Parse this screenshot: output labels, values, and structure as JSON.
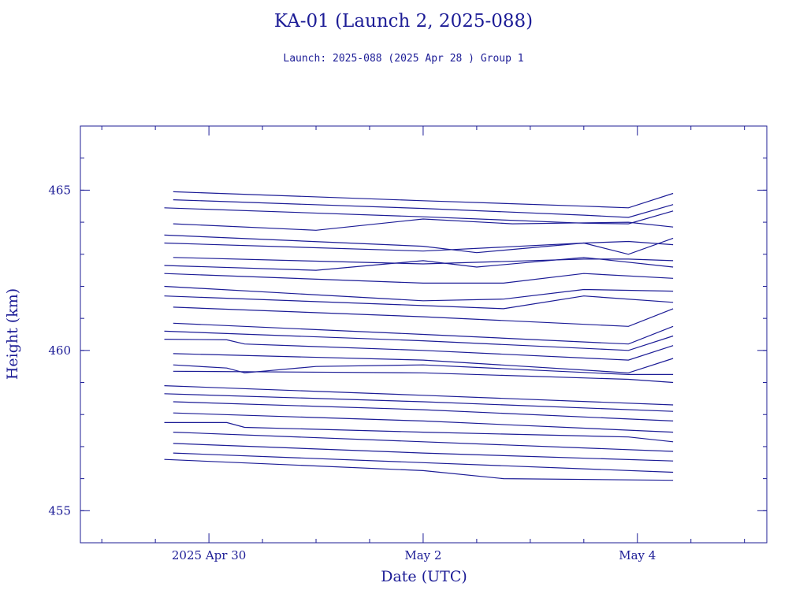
{
  "chart_data": {
    "type": "line",
    "title": "KA-01 (Launch 2, 2025-088)",
    "subtitle": "Launch: 2025-088  (2025 Apr 28 )  Group 1",
    "xlabel": "Date (UTC)",
    "ylabel": "Height (km)",
    "xlim": [
      "2025-04-28T19:12",
      "2025-05-05T05:00"
    ],
    "ylim": [
      454,
      467
    ],
    "x_ticks": [
      {
        "date": "2025-04-30T00:00",
        "label": "2025 Apr 30"
      },
      {
        "date": "2025-05-02T00:00",
        "label": "May  2"
      },
      {
        "date": "2025-05-04T00:00",
        "label": "May  4"
      }
    ],
    "y_ticks": [
      {
        "value": 455,
        "label": "455"
      },
      {
        "value": 460,
        "label": "460"
      },
      {
        "value": 465,
        "label": "465"
      }
    ],
    "minor_x_days": [
      "2025-04-29T00:00",
      "2025-04-29T12:00",
      "2025-04-30T12:00",
      "2025-05-01T00:00",
      "2025-05-01T12:00",
      "2025-05-02T12:00",
      "2025-05-03T00:00",
      "2025-05-03T12:00",
      "2025-05-04T12:00",
      "2025-05-05T00:00"
    ],
    "minor_y_step": 1,
    "line_color": "#1c1c96",
    "series": [
      {
        "x": [
          "2025-04-29T16:00",
          "2025-05-02T00:00",
          "2025-05-03T12:00",
          "2025-05-03T22:00",
          "2025-05-04T08:00"
        ],
        "y": [
          464.95,
          464.67,
          464.5,
          464.45,
          464.9
        ]
      },
      {
        "x": [
          "2025-04-29T16:00",
          "2025-05-02T00:00",
          "2025-05-03T12:00",
          "2025-05-03T22:00",
          "2025-05-04T08:00"
        ],
        "y": [
          464.7,
          464.43,
          464.22,
          464.15,
          464.55
        ]
      },
      {
        "x": [
          "2025-04-29T14:00",
          "2025-05-02T00:00",
          "2025-05-03T12:00",
          "2025-05-03T22:00",
          "2025-05-04T08:00"
        ],
        "y": [
          464.45,
          464.17,
          463.97,
          463.95,
          464.35
        ]
      },
      {
        "x": [
          "2025-04-29T16:00",
          "2025-05-01T00:00",
          "2025-05-02T00:00",
          "2025-05-02T20:00",
          "2025-05-03T22:00",
          "2025-05-04T08:00"
        ],
        "y": [
          463.95,
          463.75,
          464.1,
          463.95,
          464.0,
          463.85
        ]
      },
      {
        "x": [
          "2025-04-29T14:00",
          "2025-05-02T00:00",
          "2025-05-02T12:00",
          "2025-05-03T12:00",
          "2025-05-03T22:00",
          "2025-05-04T08:00"
        ],
        "y": [
          463.6,
          463.25,
          463.05,
          463.35,
          463.0,
          463.5
        ]
      },
      {
        "x": [
          "2025-04-29T14:00",
          "2025-05-02T00:00",
          "2025-05-03T12:00",
          "2025-05-03T22:00",
          "2025-05-04T08:00"
        ],
        "y": [
          463.35,
          463.1,
          463.35,
          463.4,
          463.3
        ]
      },
      {
        "x": [
          "2025-04-29T16:00",
          "2025-05-02T00:00",
          "2025-05-03T12:00",
          "2025-05-03T22:00",
          "2025-05-04T08:00"
        ],
        "y": [
          462.9,
          462.7,
          462.85,
          462.85,
          462.8
        ]
      },
      {
        "x": [
          "2025-04-29T14:00",
          "2025-05-01T00:00",
          "2025-05-02T00:00",
          "2025-05-02T12:00",
          "2025-05-03T12:00",
          "2025-05-04T08:00"
        ],
        "y": [
          462.65,
          462.5,
          462.8,
          462.6,
          462.9,
          462.6
        ]
      },
      {
        "x": [
          "2025-04-29T14:00",
          "2025-05-02T00:00",
          "2025-05-02T18:00",
          "2025-05-03T12:00",
          "2025-05-04T08:00"
        ],
        "y": [
          462.4,
          462.1,
          462.1,
          462.4,
          462.25
        ]
      },
      {
        "x": [
          "2025-04-29T14:00",
          "2025-05-02T00:00",
          "2025-05-02T18:00",
          "2025-05-03T12:00",
          "2025-05-04T08:00"
        ],
        "y": [
          462.0,
          461.55,
          461.6,
          461.9,
          461.85
        ]
      },
      {
        "x": [
          "2025-04-29T14:00",
          "2025-05-02T00:00",
          "2025-05-02T18:00",
          "2025-05-03T12:00",
          "2025-05-04T08:00"
        ],
        "y": [
          461.7,
          461.4,
          461.3,
          461.7,
          461.5
        ]
      },
      {
        "x": [
          "2025-04-29T16:00",
          "2025-05-02T00:00",
          "2025-05-03T22:00",
          "2025-05-04T08:00"
        ],
        "y": [
          461.35,
          461.05,
          460.75,
          461.3
        ]
      },
      {
        "x": [
          "2025-04-29T16:00",
          "2025-05-02T00:00",
          "2025-05-03T22:00",
          "2025-05-04T08:00"
        ],
        "y": [
          460.85,
          460.5,
          460.2,
          460.75
        ]
      },
      {
        "x": [
          "2025-04-29T14:00",
          "2025-05-02T00:00",
          "2025-05-03T22:00",
          "2025-05-04T08:00"
        ],
        "y": [
          460.6,
          460.3,
          460.0,
          460.45
        ]
      },
      {
        "x": [
          "2025-04-29T14:00",
          "2025-04-30T04:00",
          "2025-04-30T08:00",
          "2025-05-02T00:00",
          "2025-05-03T22:00",
          "2025-05-04T08:00"
        ],
        "y": [
          460.35,
          460.33,
          460.2,
          460.0,
          459.7,
          460.15
        ]
      },
      {
        "x": [
          "2025-04-29T16:00",
          "2025-05-02T00:00",
          "2025-05-03T22:00",
          "2025-05-04T08:00"
        ],
        "y": [
          459.9,
          459.7,
          459.3,
          459.75
        ]
      },
      {
        "x": [
          "2025-04-29T16:00",
          "2025-04-30T04:00",
          "2025-04-30T08:00",
          "2025-05-01T00:00",
          "2025-05-02T00:00",
          "2025-05-03T22:00",
          "2025-05-04T08:00"
        ],
        "y": [
          459.55,
          459.45,
          459.3,
          459.5,
          459.55,
          459.25,
          459.25
        ]
      },
      {
        "x": [
          "2025-04-29T16:00",
          "2025-05-02T00:00",
          "2025-05-03T22:00",
          "2025-05-04T08:00"
        ],
        "y": [
          459.35,
          459.3,
          459.1,
          459.0
        ]
      },
      {
        "x": [
          "2025-04-29T14:00",
          "2025-05-02T00:00",
          "2025-05-04T08:00"
        ],
        "y": [
          458.9,
          458.6,
          458.3
        ]
      },
      {
        "x": [
          "2025-04-29T14:00",
          "2025-05-02T00:00",
          "2025-05-04T08:00"
        ],
        "y": [
          458.65,
          458.4,
          458.1
        ]
      },
      {
        "x": [
          "2025-04-29T16:00",
          "2025-05-02T00:00",
          "2025-05-04T08:00"
        ],
        "y": [
          458.4,
          458.15,
          457.8
        ]
      },
      {
        "x": [
          "2025-04-29T16:00",
          "2025-05-02T00:00",
          "2025-05-04T08:00"
        ],
        "y": [
          458.05,
          457.8,
          457.45
        ]
      },
      {
        "x": [
          "2025-04-29T14:00",
          "2025-04-30T04:00",
          "2025-04-30T08:00",
          "2025-05-02T00:00",
          "2025-05-03T22:00",
          "2025-05-04T08:00"
        ],
        "y": [
          457.75,
          457.75,
          457.6,
          457.45,
          457.3,
          457.15
        ]
      },
      {
        "x": [
          "2025-04-29T16:00",
          "2025-05-02T00:00",
          "2025-05-04T08:00"
        ],
        "y": [
          457.45,
          457.15,
          456.85
        ]
      },
      {
        "x": [
          "2025-04-29T16:00",
          "2025-05-02T00:00",
          "2025-05-04T08:00"
        ],
        "y": [
          457.1,
          456.8,
          456.55
        ]
      },
      {
        "x": [
          "2025-04-29T16:00",
          "2025-05-02T00:00",
          "2025-05-04T08:00"
        ],
        "y": [
          456.8,
          456.5,
          456.2
        ]
      },
      {
        "x": [
          "2025-04-29T14:00",
          "2025-05-02T00:00",
          "2025-05-02T18:00",
          "2025-05-04T08:00"
        ],
        "y": [
          456.6,
          456.25,
          456.0,
          455.95
        ]
      }
    ]
  }
}
